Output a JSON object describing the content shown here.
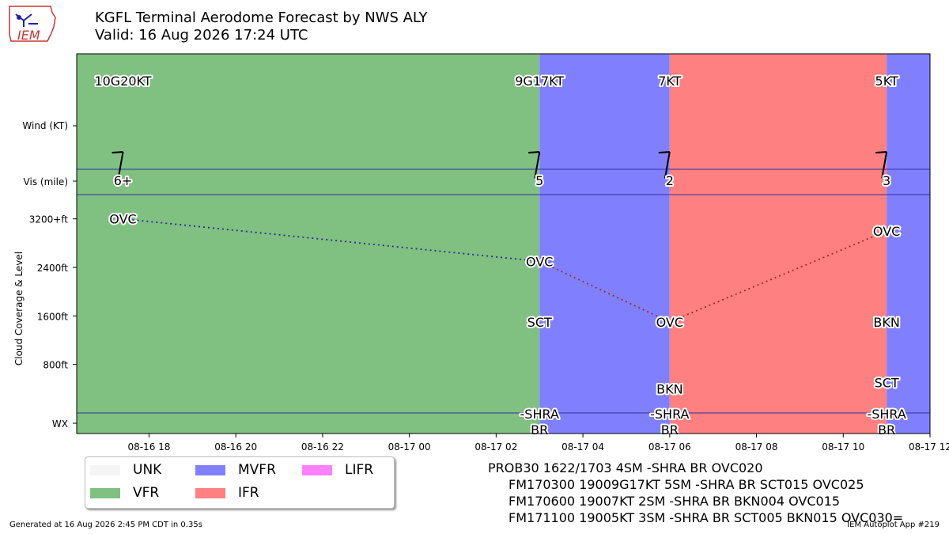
{
  "header": {
    "title_line1": "KGFL Terminal Aerodome Forecast by NWS ALY",
    "title_line2": "Valid: 16 Aug 2026 17:24 UTC",
    "logo_text": "IEM"
  },
  "chart_data": {
    "type": "timeline",
    "x_range": [
      "2026-08-16 16:20",
      "2026-08-17 12:00"
    ],
    "x_ticks": [
      {
        "t": "2026-08-16 18:00",
        "label": "08-16 18"
      },
      {
        "t": "2026-08-16 20:00",
        "label": "08-16 20"
      },
      {
        "t": "2026-08-16 22:00",
        "label": "08-16 22"
      },
      {
        "t": "2026-08-17 00:00",
        "label": "08-17 00"
      },
      {
        "t": "2026-08-17 02:00",
        "label": "08-17 02"
      },
      {
        "t": "2026-08-17 04:00",
        "label": "08-17 04"
      },
      {
        "t": "2026-08-17 06:00",
        "label": "08-17 06"
      },
      {
        "t": "2026-08-17 08:00",
        "label": "08-17 08"
      },
      {
        "t": "2026-08-17 10:00",
        "label": "08-17 10"
      },
      {
        "t": "2026-08-17 12:00",
        "label": "08-17 12"
      }
    ],
    "y_labels": {
      "wind": "Wind (KT)",
      "vis": "Vis (mile)",
      "wx": "WX",
      "cloud_axis": "Cloud Coverage & Level"
    },
    "cloud_ticks": [
      {
        "value": 3200,
        "label": "3200+ft"
      },
      {
        "value": 2400,
        "label": "2400ft"
      },
      {
        "value": 1600,
        "label": "1600ft"
      },
      {
        "value": 800,
        "label": "800ft"
      }
    ],
    "cloud_range": [
      0,
      3600
    ],
    "categories": {
      "UNK": "#f5f5f5",
      "VFR": "#80c080",
      "MVFR": "#8080ff",
      "IFR": "#ff8080",
      "LIFR": "#ff80ff"
    },
    "segments": [
      {
        "start": "2026-08-16 16:20",
        "end": "2026-08-17 03:00",
        "category": "VFR"
      },
      {
        "start": "2026-08-17 03:00",
        "end": "2026-08-17 06:00",
        "category": "MVFR"
      },
      {
        "start": "2026-08-17 06:00",
        "end": "2026-08-17 11:00",
        "category": "IFR"
      },
      {
        "start": "2026-08-17 11:00",
        "end": "2026-08-17 12:00",
        "category": "MVFR"
      }
    ],
    "forecasts": [
      {
        "t": "2026-08-16 17:24",
        "wind_label": "10G20KT",
        "wind_dir": 190,
        "vis": "6+",
        "wx": [
          "",
          ""
        ]
      },
      {
        "t": "2026-08-17 03:00",
        "wind_label": "9G17KT",
        "wind_dir": 190,
        "vis": "5",
        "wx": [
          "-SHRA",
          "BR"
        ]
      },
      {
        "t": "2026-08-17 06:00",
        "wind_label": "7KT",
        "wind_dir": 190,
        "vis": "2",
        "wx": [
          "-SHRA",
          "BR"
        ]
      },
      {
        "t": "2026-08-17 11:00",
        "wind_label": "5KT",
        "wind_dir": 190,
        "vis": "3",
        "wx": [
          "-SHRA",
          "BR"
        ]
      }
    ],
    "clouds": [
      {
        "t": "2026-08-16 17:24",
        "level": 3200,
        "cover": "OVC"
      },
      {
        "t": "2026-08-17 03:00",
        "level": 2500,
        "cover": "OVC"
      },
      {
        "t": "2026-08-17 03:00",
        "level": 1500,
        "cover": "SCT"
      },
      {
        "t": "2026-08-17 06:00",
        "level": 1500,
        "cover": "OVC"
      },
      {
        "t": "2026-08-17 06:00",
        "level": 400,
        "cover": "BKN"
      },
      {
        "t": "2026-08-17 11:00",
        "level": 3000,
        "cover": "OVC"
      },
      {
        "t": "2026-08-17 11:00",
        "level": 1500,
        "cover": "BKN"
      },
      {
        "t": "2026-08-17 11:00",
        "level": 500,
        "cover": "SCT"
      }
    ],
    "ceiling_line": [
      {
        "t": "2026-08-16 17:24",
        "level": 3200,
        "color": "#2a6a2a"
      },
      {
        "t": "2026-08-17 03:00",
        "level": 2500,
        "color": "#2a2a9a"
      },
      {
        "t": "2026-08-17 06:00",
        "level": 1500,
        "color": "#9a2a2a"
      },
      {
        "t": "2026-08-17 11:00",
        "level": 3000,
        "color": "#9a2a2a"
      }
    ]
  },
  "legend": {
    "items": [
      {
        "label": "UNK",
        "color": "#f5f5f5"
      },
      {
        "label": "MVFR",
        "color": "#8080ff"
      },
      {
        "label": "LIFR",
        "color": "#ff80ff"
      },
      {
        "label": "VFR",
        "color": "#80c080"
      },
      {
        "label": "IFR",
        "color": "#ff8080"
      }
    ]
  },
  "taf_text": [
    "PROB30 1622/1703 4SM -SHRA BR OVC020",
    "FM170300 19009G17KT 5SM -SHRA BR SCT015 OVC025",
    "FM170600 19007KT 2SM -SHRA BR BKN004 OVC015",
    "FM171100 19005KT 3SM -SHRA BR SCT005 BKN015 OVC030="
  ],
  "footer": {
    "left": "Generated at 16 Aug 2026 2:45 PM CDT in 0.35s",
    "right": "IEM Autoplot App #219"
  }
}
